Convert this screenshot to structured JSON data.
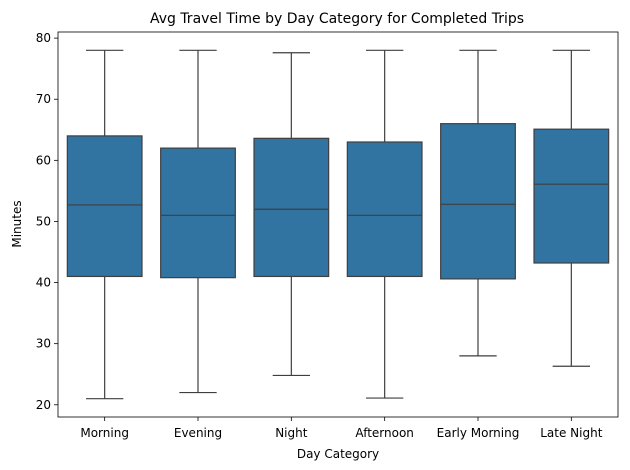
{
  "chart_data": {
    "type": "box",
    "title": "Avg Travel Time by Day Category for Completed Trips",
    "xlabel": "Day Category",
    "ylabel": "Minutes",
    "ylim": [
      18,
      81
    ],
    "yticks": [
      20,
      30,
      40,
      50,
      60,
      70,
      80
    ],
    "grid": false,
    "legend": "none",
    "box_color": "#3274a1",
    "line_color": "#3f3f3f",
    "categories": [
      "Morning",
      "Evening",
      "Night",
      "Afternoon",
      "Early Morning",
      "Late Night"
    ],
    "boxes": [
      {
        "category": "Morning",
        "min": 21.0,
        "q1": 41.0,
        "median": 52.7,
        "q3": 64.0,
        "max": 78.0
      },
      {
        "category": "Evening",
        "min": 22.0,
        "q1": 40.8,
        "median": 51.0,
        "q3": 62.0,
        "max": 78.0
      },
      {
        "category": "Night",
        "min": 24.8,
        "q1": 41.0,
        "median": 52.0,
        "q3": 63.6,
        "max": 77.6
      },
      {
        "category": "Afternoon",
        "min": 21.1,
        "q1": 41.0,
        "median": 51.0,
        "q3": 63.0,
        "max": 78.0
      },
      {
        "category": "Early Morning",
        "min": 28.0,
        "q1": 40.6,
        "median": 52.8,
        "q3": 66.0,
        "max": 78.0
      },
      {
        "category": "Late Night",
        "min": 26.3,
        "q1": 43.2,
        "median": 56.1,
        "q3": 65.1,
        "max": 78.0
      }
    ]
  }
}
